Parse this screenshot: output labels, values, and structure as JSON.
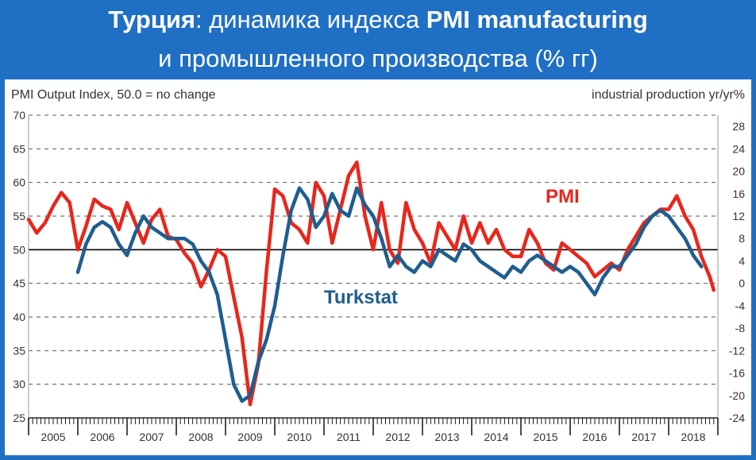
{
  "header": {
    "country": "Турция",
    "line1_rest": ": динамика индекса ",
    "line1_bold": "PMI manufacturing",
    "line2": "и промышленного производства (% гг)"
  },
  "colors": {
    "background": "#1f6fc5",
    "pmi": "#e8261c",
    "turkstat": "#1f5d8f",
    "gridline": "#555555"
  },
  "chart_data": {
    "type": "line",
    "left_axis_label": "PMI Output Index, 50.0 = no change",
    "right_axis_label": "industrial production yr/yr%",
    "left_ylim": [
      25,
      70
    ],
    "left_ticks": [
      25,
      30,
      35,
      40,
      45,
      50,
      55,
      60,
      65,
      70
    ],
    "right_ylim": [
      -24,
      30
    ],
    "right_ticks": [
      -24,
      -20,
      -16,
      -12,
      -8,
      -4,
      0,
      4,
      8,
      12,
      16,
      20,
      24,
      28
    ],
    "reference_line": 50,
    "grid": true,
    "x_range": [
      "2005-01",
      "2018-12"
    ],
    "year_labels": [
      "2005",
      "2006",
      "2007",
      "2008",
      "2009",
      "2010",
      "2011",
      "2012",
      "2013",
      "2014",
      "2015",
      "2016",
      "2017",
      "2018"
    ],
    "series": [
      {
        "name": "PMI",
        "axis": "left",
        "color": "#e8261c",
        "points": [
          [
            "2005-01",
            54.5
          ],
          [
            "2005-03",
            52.5
          ],
          [
            "2005-05",
            54
          ],
          [
            "2005-07",
            56.5
          ],
          [
            "2005-09",
            58.5
          ],
          [
            "2005-11",
            57
          ],
          [
            "2006-01",
            50
          ],
          [
            "2006-03",
            53.5
          ],
          [
            "2006-05",
            57.5
          ],
          [
            "2006-07",
            56.5
          ],
          [
            "2006-09",
            56
          ],
          [
            "2006-11",
            53
          ],
          [
            "2007-01",
            57
          ],
          [
            "2007-03",
            54
          ],
          [
            "2007-05",
            51
          ],
          [
            "2007-07",
            54.5
          ],
          [
            "2007-09",
            56
          ],
          [
            "2007-11",
            52
          ],
          [
            "2008-01",
            51.5
          ],
          [
            "2008-03",
            49.5
          ],
          [
            "2008-05",
            48
          ],
          [
            "2008-07",
            44.5
          ],
          [
            "2008-09",
            47
          ],
          [
            "2008-11",
            50
          ],
          [
            "2009-01",
            49
          ],
          [
            "2009-03",
            43
          ],
          [
            "2009-05",
            37
          ],
          [
            "2009-07",
            27
          ],
          [
            "2009-09",
            33
          ],
          [
            "2009-11",
            47
          ],
          [
            "2010-01",
            59
          ],
          [
            "2010-03",
            58
          ],
          [
            "2010-05",
            54
          ],
          [
            "2010-07",
            53
          ],
          [
            "2010-09",
            51
          ],
          [
            "2010-11",
            60
          ],
          [
            "2011-01",
            58
          ],
          [
            "2011-03",
            51
          ],
          [
            "2011-05",
            56
          ],
          [
            "2011-07",
            61
          ],
          [
            "2011-09",
            63
          ],
          [
            "2011-11",
            55
          ],
          [
            "2012-01",
            50
          ],
          [
            "2012-03",
            57
          ],
          [
            "2012-05",
            50
          ],
          [
            "2012-07",
            48
          ],
          [
            "2012-09",
            57
          ],
          [
            "2012-11",
            53
          ],
          [
            "2013-01",
            51
          ],
          [
            "2013-03",
            48
          ],
          [
            "2013-05",
            54
          ],
          [
            "2013-07",
            52
          ],
          [
            "2013-09",
            50
          ],
          [
            "2013-11",
            55
          ],
          [
            "2014-01",
            51
          ],
          [
            "2014-03",
            54
          ],
          [
            "2014-05",
            51
          ],
          [
            "2014-07",
            53
          ],
          [
            "2014-09",
            50
          ],
          [
            "2014-11",
            49
          ],
          [
            "2015-01",
            49
          ],
          [
            "2015-03",
            53
          ],
          [
            "2015-05",
            51
          ],
          [
            "2015-07",
            48
          ],
          [
            "2015-09",
            47
          ],
          [
            "2015-11",
            51
          ],
          [
            "2016-01",
            50
          ],
          [
            "2016-03",
            49
          ],
          [
            "2016-05",
            48
          ],
          [
            "2016-07",
            46
          ],
          [
            "2016-09",
            47
          ],
          [
            "2016-11",
            48
          ],
          [
            "2017-01",
            47
          ],
          [
            "2017-03",
            50
          ],
          [
            "2017-05",
            52
          ],
          [
            "2017-07",
            54
          ],
          [
            "2017-09",
            55
          ],
          [
            "2017-11",
            56
          ],
          [
            "2018-01",
            56
          ],
          [
            "2018-03",
            58
          ],
          [
            "2018-05",
            55
          ],
          [
            "2018-07",
            53
          ],
          [
            "2018-09",
            49
          ],
          [
            "2018-11",
            46
          ],
          [
            "2018-12",
            44
          ]
        ]
      },
      {
        "name": "Turkstat",
        "axis": "right",
        "color": "#1f5d8f",
        "points": [
          [
            "2006-01",
            2
          ],
          [
            "2006-03",
            7
          ],
          [
            "2006-05",
            10
          ],
          [
            "2006-07",
            11
          ],
          [
            "2006-09",
            10
          ],
          [
            "2006-11",
            7
          ],
          [
            "2007-01",
            5
          ],
          [
            "2007-03",
            9
          ],
          [
            "2007-05",
            12
          ],
          [
            "2007-07",
            10
          ],
          [
            "2007-09",
            9
          ],
          [
            "2007-11",
            8
          ],
          [
            "2008-01",
            8
          ],
          [
            "2008-03",
            8
          ],
          [
            "2008-05",
            7
          ],
          [
            "2008-07",
            4
          ],
          [
            "2008-09",
            2
          ],
          [
            "2008-11",
            -2
          ],
          [
            "2009-01",
            -10
          ],
          [
            "2009-03",
            -18
          ],
          [
            "2009-05",
            -21
          ],
          [
            "2009-07",
            -20
          ],
          [
            "2009-09",
            -14
          ],
          [
            "2009-11",
            -10
          ],
          [
            "2010-01",
            -4
          ],
          [
            "2010-03",
            5
          ],
          [
            "2010-05",
            13
          ],
          [
            "2010-07",
            17
          ],
          [
            "2010-09",
            15
          ],
          [
            "2010-11",
            10
          ],
          [
            "2011-01",
            12
          ],
          [
            "2011-03",
            16
          ],
          [
            "2011-05",
            13
          ],
          [
            "2011-07",
            12
          ],
          [
            "2011-09",
            17
          ],
          [
            "2011-11",
            14
          ],
          [
            "2012-01",
            12
          ],
          [
            "2012-03",
            8
          ],
          [
            "2012-05",
            3
          ],
          [
            "2012-07",
            5
          ],
          [
            "2012-09",
            3
          ],
          [
            "2012-11",
            2
          ],
          [
            "2013-01",
            4
          ],
          [
            "2013-03",
            3
          ],
          [
            "2013-05",
            6
          ],
          [
            "2013-07",
            5
          ],
          [
            "2013-09",
            4
          ],
          [
            "2013-11",
            7
          ],
          [
            "2014-01",
            6
          ],
          [
            "2014-03",
            4
          ],
          [
            "2014-05",
            3
          ],
          [
            "2014-07",
            2
          ],
          [
            "2014-09",
            1
          ],
          [
            "2014-11",
            3
          ],
          [
            "2015-01",
            2
          ],
          [
            "2015-03",
            4
          ],
          [
            "2015-05",
            5
          ],
          [
            "2015-07",
            4
          ],
          [
            "2015-09",
            3
          ],
          [
            "2015-11",
            2
          ],
          [
            "2016-01",
            3
          ],
          [
            "2016-03",
            2
          ],
          [
            "2016-05",
            0
          ],
          [
            "2016-07",
            -2
          ],
          [
            "2016-09",
            1
          ],
          [
            "2016-11",
            3
          ],
          [
            "2017-01",
            3
          ],
          [
            "2017-03",
            5
          ],
          [
            "2017-05",
            7
          ],
          [
            "2017-07",
            10
          ],
          [
            "2017-09",
            12
          ],
          [
            "2017-11",
            13
          ],
          [
            "2018-01",
            12
          ],
          [
            "2018-03",
            10
          ],
          [
            "2018-05",
            8
          ],
          [
            "2018-07",
            5
          ],
          [
            "2018-09",
            3
          ]
        ]
      }
    ],
    "annotations": [
      {
        "text": "PMI",
        "series": "PMI",
        "at": [
          "2015-07",
          57
        ],
        "axis": "left"
      },
      {
        "text": "Turkstat",
        "series": "Turkstat",
        "at": [
          "2011-01",
          42
        ],
        "axis": "left"
      }
    ]
  }
}
